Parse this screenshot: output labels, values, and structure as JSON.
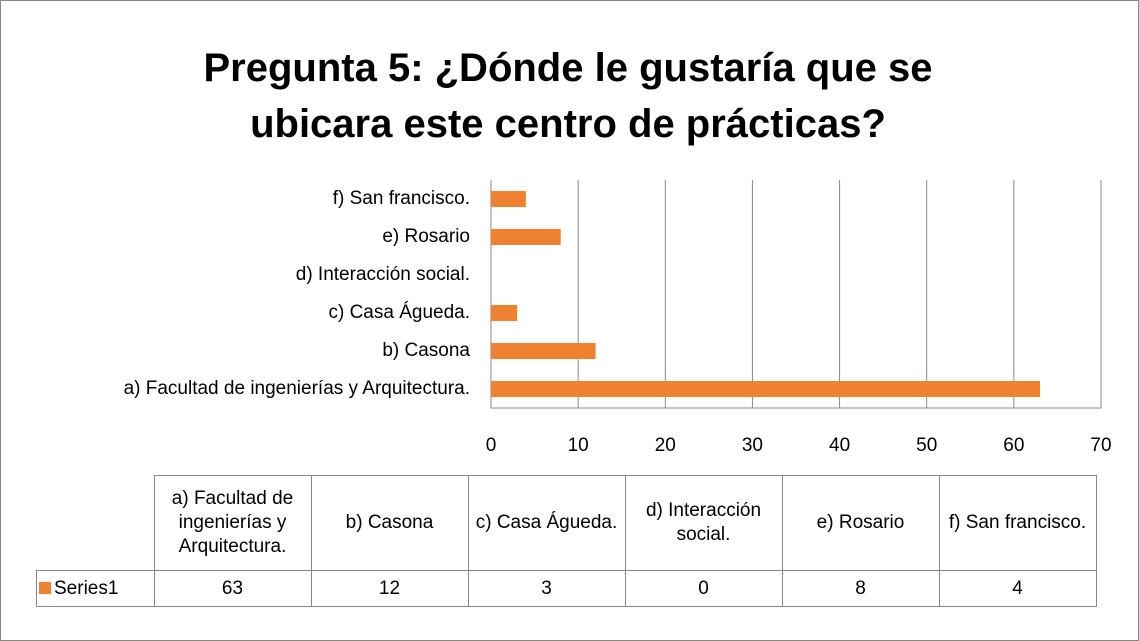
{
  "chart_data": {
    "type": "bar",
    "orientation": "horizontal",
    "title": "Pregunta 5: ¿Dónde le gustaría que se ubicara este centro de prácticas?",
    "categories": [
      "a) Facultad de ingenierías y Arquitectura.",
      "b) Casona",
      "c) Casa Águeda.",
      "d) Interacción social.",
      "e) Rosario",
      "f) San francisco."
    ],
    "series": [
      {
        "name": "Series1",
        "color": "#ef8130",
        "values": [
          63,
          12,
          3,
          0,
          8,
          4
        ]
      }
    ],
    "xlim": [
      0,
      70
    ],
    "xticks": [
      0,
      10,
      20,
      30,
      40,
      50,
      60,
      70
    ],
    "grid": true,
    "data_table": true
  }
}
